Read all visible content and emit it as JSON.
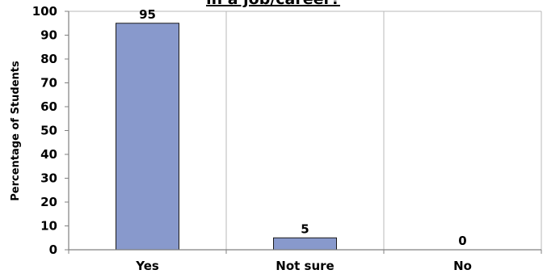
{
  "chart_data": {
    "type": "bar",
    "title": "in a job/career?",
    "xlabel": "",
    "ylabel": "Percentage of Students",
    "categories": [
      "Yes",
      "Not sure",
      "No"
    ],
    "values": [
      95,
      5,
      0
    ],
    "data_labels": [
      "95",
      "5",
      "0"
    ],
    "ylim": [
      0,
      100
    ],
    "yticks": [
      0,
      10,
      20,
      30,
      40,
      50,
      60,
      70,
      80,
      90,
      100
    ],
    "grid": "vertical lines at category boundaries",
    "legend": "none",
    "colors": {
      "bar_fill": "#8899cc",
      "bar_stroke": "#1a1a1a",
      "axis": "#808080",
      "grid": "#b8b8b8"
    }
  }
}
